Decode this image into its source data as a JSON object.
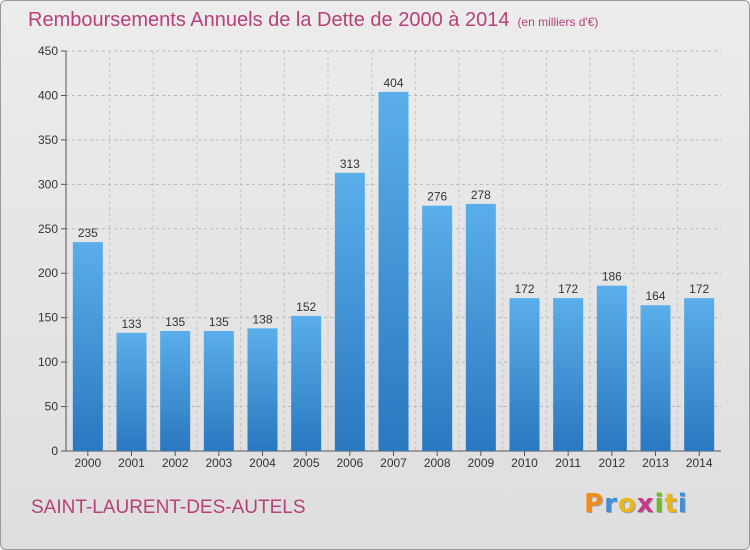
{
  "chart_data": {
    "type": "bar",
    "title": "Remboursements Annuels de la Dette de 2000 à 2014",
    "subtitle": "(en milliers d'€)",
    "categories": [
      "2000",
      "2001",
      "2002",
      "2003",
      "2004",
      "2005",
      "2006",
      "2007",
      "2008",
      "2009",
      "2010",
      "2011",
      "2012",
      "2013",
      "2014"
    ],
    "values": [
      235,
      133,
      135,
      135,
      138,
      152,
      313,
      404,
      276,
      278,
      172,
      172,
      186,
      164,
      172
    ],
    "yticks": [
      0,
      50,
      100,
      150,
      200,
      250,
      300,
      350,
      400,
      450
    ],
    "ylim": [
      0,
      450
    ],
    "grid": true,
    "bar_color_top": "#5aaeea",
    "bar_color_bottom": "#2a78c0"
  },
  "commune": "SAINT-LAURENT-DES-AUTELS",
  "brand": {
    "letters": [
      "P",
      "r",
      "o",
      "x",
      "i",
      "t",
      "i"
    ],
    "colors": [
      "#f08c1a",
      "#3d8fd8",
      "#e8b81a",
      "#c53a8a",
      "#6bb82a",
      "#e8b81a",
      "#3d8fd8"
    ]
  }
}
